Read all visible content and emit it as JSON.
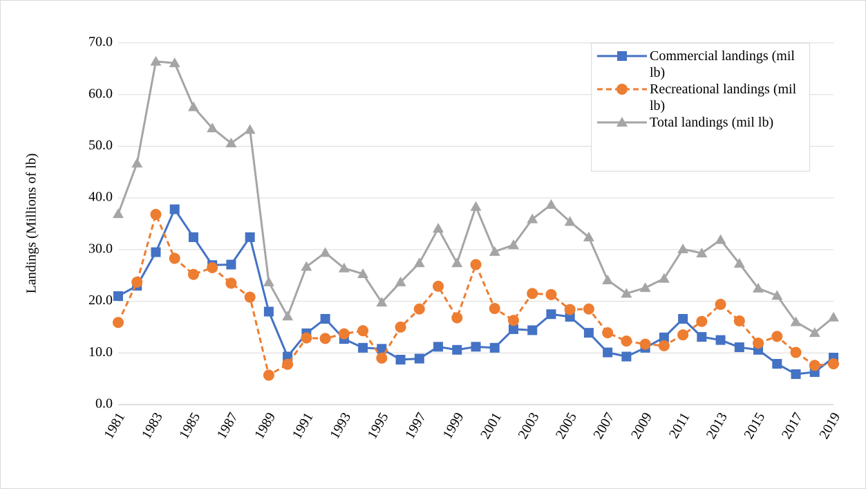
{
  "chart_data": {
    "type": "line",
    "y_label": "Landings (Millions of lb)",
    "categories": [
      "1981",
      null,
      "1983",
      null,
      "1985",
      null,
      "1987",
      null,
      "1989",
      null,
      "1991",
      null,
      "1993",
      null,
      "1995",
      null,
      "1997",
      null,
      "1999",
      null,
      "2001",
      null,
      "2003",
      null,
      "2005",
      null,
      "2007",
      null,
      "2009",
      null,
      "2011",
      null,
      "2013",
      null,
      "2015",
      null,
      "2017",
      null,
      "2019"
    ],
    "series": [
      {
        "name": "Commercial landings (mil lb)",
        "color": "#4472c4",
        "marker": "square",
        "dashed": false,
        "values": [
          21.0,
          23.0,
          29.5,
          37.8,
          32.4,
          27.0,
          27.1,
          32.4,
          18.0,
          9.3,
          13.8,
          16.6,
          12.7,
          11.0,
          10.8,
          8.7,
          8.9,
          11.2,
          10.6,
          11.2,
          11.0,
          14.6,
          14.4,
          17.5,
          17.0,
          13.9,
          10.1,
          9.3,
          11.0,
          13.0,
          16.6,
          13.1,
          12.5,
          11.1,
          10.6,
          7.9,
          5.9,
          6.3,
          9.1
        ]
      },
      {
        "name": "Recreational landings (mil lb)",
        "color": "#ed7d31",
        "marker": "circle",
        "dashed": true,
        "values": [
          15.9,
          23.7,
          36.8,
          28.3,
          25.2,
          26.5,
          23.5,
          20.8,
          5.7,
          7.8,
          12.9,
          12.8,
          13.7,
          14.3,
          9.0,
          15.0,
          18.5,
          22.9,
          16.8,
          27.1,
          18.6,
          16.3,
          21.5,
          21.3,
          18.4,
          18.5,
          13.9,
          12.3,
          11.7,
          11.4,
          13.5,
          16.1,
          19.4,
          16.2,
          11.9,
          13.2,
          10.1,
          7.6,
          7.9
        ]
      },
      {
        "name": "Total landings (mil lb)",
        "color": "#a5a5a5",
        "marker": "triangle",
        "dashed": false,
        "values": [
          36.9,
          46.7,
          66.4,
          66.1,
          57.6,
          53.5,
          50.6,
          53.2,
          23.7,
          17.1,
          26.7,
          29.4,
          26.4,
          25.3,
          19.8,
          23.7,
          27.4,
          34.1,
          27.4,
          38.3,
          29.6,
          30.9,
          35.9,
          38.7,
          35.4,
          32.4,
          24.1,
          21.5,
          22.6,
          24.4,
          30.1,
          29.3,
          31.9,
          27.3,
          22.5,
          21.1,
          16.0,
          13.9,
          16.9
        ]
      }
    ],
    "ylim": [
      0,
      70
    ],
    "yticks": [
      {
        "value": 0,
        "label": "0.0"
      },
      {
        "value": 10,
        "label": "10.0"
      },
      {
        "value": 20,
        "label": "20.0"
      },
      {
        "value": 30,
        "label": "30.0"
      },
      {
        "value": 40,
        "label": "40.0"
      },
      {
        "value": 50,
        "label": "50.0"
      },
      {
        "value": 60,
        "label": "60.0"
      },
      {
        "value": 70,
        "label": "70.0"
      }
    ],
    "grid": true,
    "legend": "top-right"
  }
}
